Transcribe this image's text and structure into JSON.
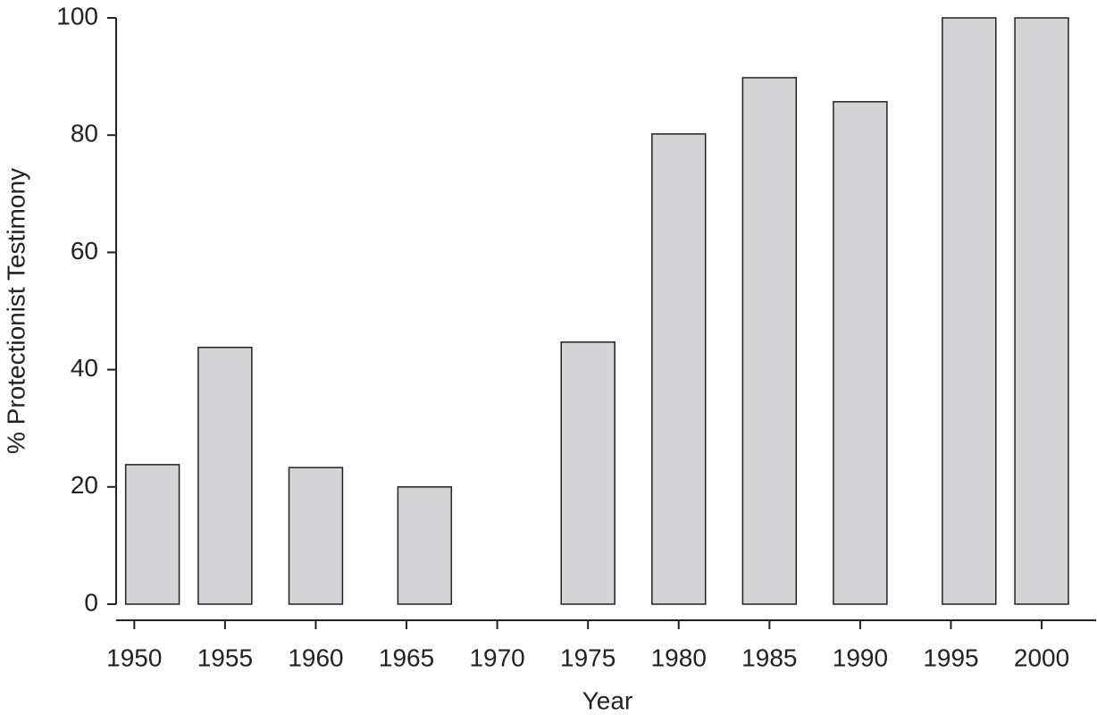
{
  "chart_data": {
    "type": "bar",
    "x_label": "Year",
    "y_label": "% Protectionist Testimony",
    "x": [
      1951,
      1955,
      1960,
      1966,
      1975,
      1980,
      1985,
      1990,
      1996,
      2000
    ],
    "values": [
      23.8,
      43.8,
      23.3,
      20,
      44.7,
      80.2,
      89.8,
      85.7,
      100,
      100
    ],
    "color": "#d4d4d6",
    "xlim": [
      1949,
      2003
    ],
    "xticks": [
      1950,
      1955,
      1960,
      1965,
      1970,
      1975,
      1980,
      1985,
      1990,
      1995,
      2000
    ],
    "ylim": [
      0,
      100
    ],
    "yticks": [
      0,
      20,
      40,
      60,
      80,
      100
    ],
    "grid": false
  }
}
